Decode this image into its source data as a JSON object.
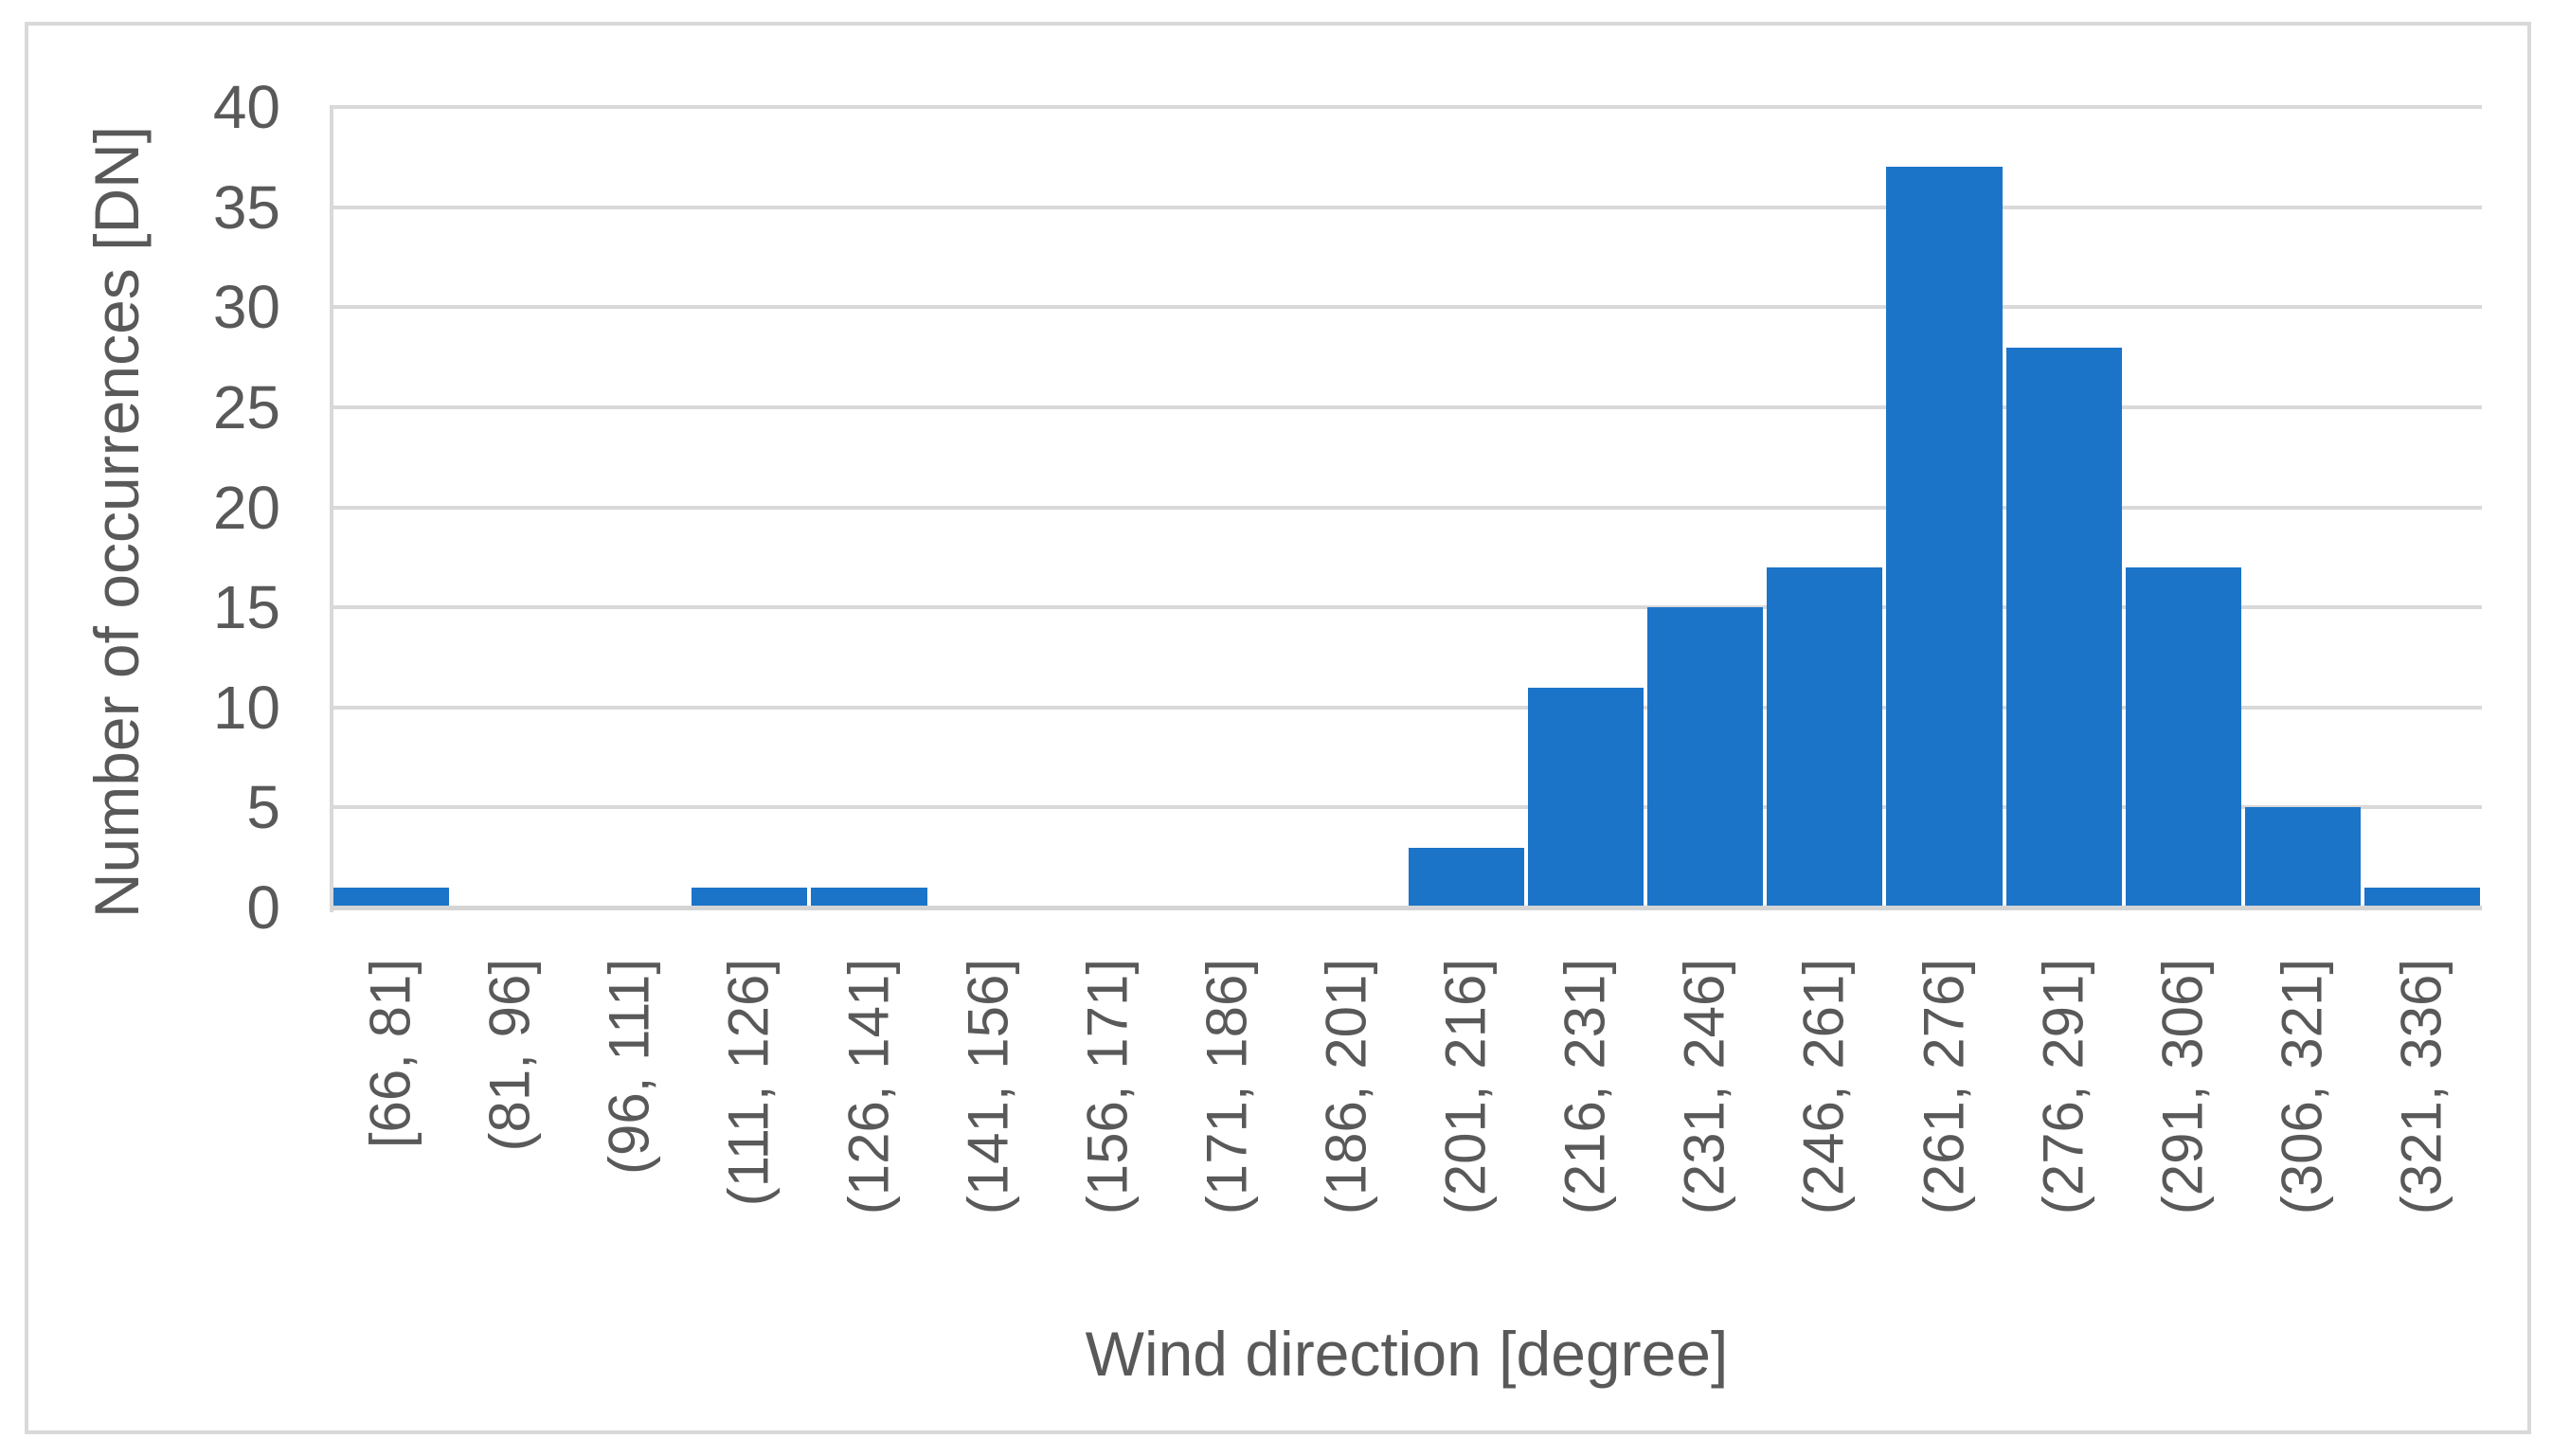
{
  "chart_data": {
    "type": "bar",
    "title": "",
    "xlabel": "Wind direction [degree]",
    "ylabel": "Number of occurrences [DN]",
    "categories": [
      "[66, 81]",
      "(81, 96]",
      "(96, 111]",
      "(111, 126]",
      "(126, 141]",
      "(141, 156]",
      "(156, 171]",
      "(171, 186]",
      "(186, 201]",
      "(201, 216]",
      "(216, 231]",
      "(231, 246]",
      "(246, 261]",
      "(261, 276]",
      "(276, 291]",
      "(291, 306]",
      "(306, 321]",
      "(321, 336]"
    ],
    "values": [
      1,
      0,
      0,
      1,
      1,
      0,
      0,
      0,
      0,
      3,
      11,
      15,
      17,
      37,
      28,
      17,
      5,
      1
    ],
    "ylim": [
      0,
      40
    ],
    "yticks": [
      0,
      5,
      10,
      15,
      20,
      25,
      30,
      35,
      40
    ],
    "grid": "horizontal",
    "legend": "none",
    "colors": {
      "bar": "#1B74C8",
      "gridline": "#D9D9D9",
      "axis_line": "#D9D9D9",
      "label": "#595959",
      "chart_border": "#D9D9D9",
      "background": "#FFFFFF"
    }
  }
}
